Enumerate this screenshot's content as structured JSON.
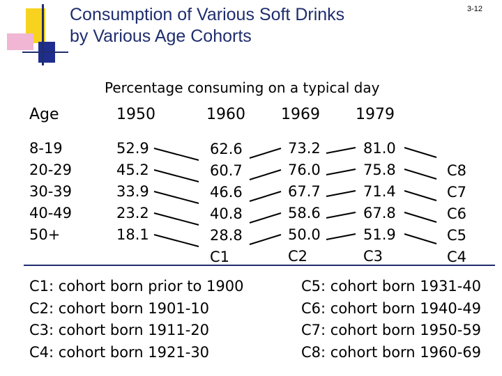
{
  "slide": {
    "title_line1": "Consumption of Various Soft Drinks",
    "title_line2": "by Various Age Cohorts",
    "slide_number": "3-12",
    "subtitle": "Percentage consuming on a typical day"
  },
  "table": {
    "headers": [
      "Age",
      "1950",
      "1960",
      "1969",
      "1979"
    ],
    "ages": [
      "8-19",
      "20-29",
      "30-39",
      "40-49",
      "50+"
    ],
    "y1950": [
      "52.9",
      "45.2",
      "33.9",
      "23.2",
      "18.1"
    ],
    "y1960": [
      "62.6",
      "60.7",
      "46.6",
      "40.8",
      "28.8",
      "C1"
    ],
    "y1969": [
      "73.2",
      "76.0",
      "67.7",
      "58.6",
      "50.0",
      "C2"
    ],
    "y1979": [
      "81.0",
      "75.8",
      "71.4",
      "67.8",
      "51.9",
      "C3"
    ],
    "cohorts_right": [
      "C8",
      "C7",
      "C6",
      "C5",
      "C4"
    ]
  },
  "legend": {
    "left": [
      "C1: cohort born prior to 1900",
      "C2: cohort born 1901-10",
      "C3: cohort born 1911-20",
      "C4: cohort born 1921-30"
    ],
    "right": [
      "C5: cohort born 1931-40",
      "C6: cohort born 1940-49",
      "C7: cohort born 1950-59",
      "C8: cohort born 1960-69"
    ]
  },
  "colors": {
    "title": "#1f2d6e",
    "logo_yellow": "#f7d31f",
    "logo_pink": "#f0b6d3",
    "logo_blue": "#1f2d8e"
  }
}
